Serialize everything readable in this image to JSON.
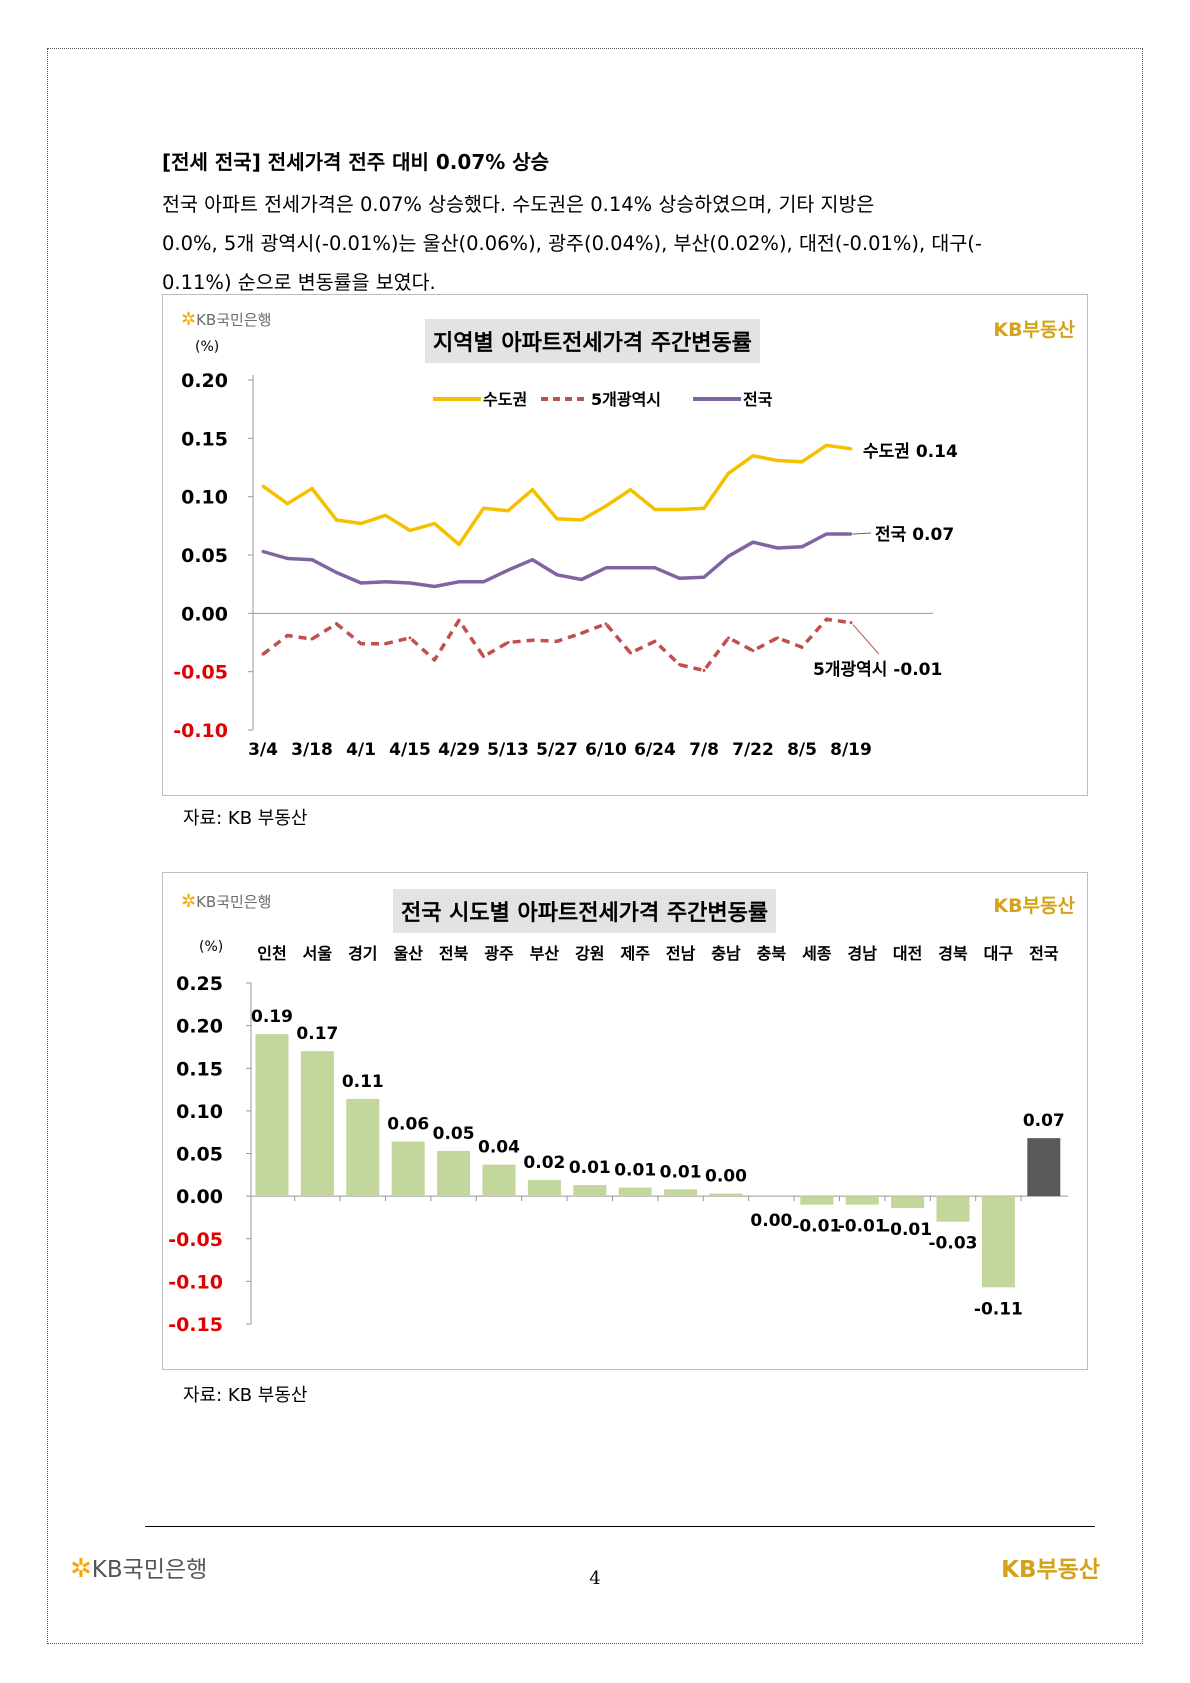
{
  "heading": "[전세 전국] 전세가격 전주 대비 0.07% 상승",
  "paragraph_lines": [
    "전국 아파트 전세가격은 0.07% 상승했다. 수도권은 0.14% 상승하였으며, 기타 지방은",
    "0.0%, 5개 광역시(-0.01%)는 울산(0.06%), 광주(0.04%), 부산(0.02%), 대전(-0.01%), 대구(-",
    "0.11%) 순으로 변동률을 보였다."
  ],
  "logos": {
    "bank": "KB국민은행",
    "kb": "KB부동산"
  },
  "chart1": {
    "title": "지역별 아파트전세가격 주간변동률",
    "unit": "(%)",
    "source": "자료: KB 부동산"
  },
  "chart2": {
    "title": "전국 시도별 아파트전세가격 주간변동률",
    "unit": "(%)",
    "source": "자료: KB 부동산"
  },
  "footer": {
    "bank": "KB국민은행",
    "kb": "KB부동산",
    "page": "4"
  },
  "colors": {
    "capital": "#f5c000",
    "metro": "#c0504d",
    "national": "#8064a2",
    "bar": "#c3d69b",
    "bar_national": "#595959",
    "negative_tick": "#e00000"
  },
  "chart_data": [
    {
      "type": "line",
      "title": "지역별 아파트전세가격 주간변동률",
      "ylabel": "(%)",
      "ylim": [
        -0.1,
        0.2
      ],
      "yticks": [
        "0.20",
        "0.15",
        "0.10",
        "0.05",
        "0.00",
        "-0.05",
        "-0.10"
      ],
      "x_tick_labels": [
        "3/4",
        "3/18",
        "4/1",
        "4/15",
        "4/29",
        "5/13",
        "5/27",
        "6/10",
        "6/24",
        "7/8",
        "7/22",
        "8/5",
        "8/19"
      ],
      "legend": [
        "수도권",
        "5개광역시",
        "전국"
      ],
      "legend_position": "top-center",
      "series": [
        {
          "name": "수도권",
          "style": "solid",
          "color": "#f5c000",
          "values": [
            0.109,
            0.094,
            0.107,
            0.08,
            0.077,
            0.084,
            0.071,
            0.077,
            0.059,
            0.09,
            0.088,
            0.106,
            0.081,
            0.08,
            0.092,
            0.106,
            0.089,
            0.089,
            0.09,
            0.12,
            0.135,
            0.131,
            0.13,
            0.144,
            0.141
          ],
          "end_label": "수도권 0.14"
        },
        {
          "name": "5개광역시",
          "style": "dashed",
          "color": "#c0504d",
          "values": [
            -0.035,
            -0.019,
            -0.022,
            -0.009,
            -0.026,
            -0.026,
            -0.021,
            -0.04,
            -0.006,
            -0.037,
            -0.025,
            -0.023,
            -0.024,
            -0.017,
            -0.009,
            -0.034,
            -0.024,
            -0.044,
            -0.049,
            -0.021,
            -0.032,
            -0.021,
            -0.029,
            -0.005,
            -0.008
          ],
          "end_label": "5개광역시 -0.01"
        },
        {
          "name": "전국",
          "style": "solid",
          "color": "#8064a2",
          "values": [
            0.053,
            0.047,
            0.046,
            0.035,
            0.026,
            0.027,
            0.026,
            0.023,
            0.027,
            0.027,
            0.037,
            0.046,
            0.033,
            0.029,
            0.039,
            0.039,
            0.039,
            0.03,
            0.031,
            0.049,
            0.061,
            0.056,
            0.057,
            0.068,
            0.068
          ],
          "end_label": "전국 0.07"
        }
      ]
    },
    {
      "type": "bar",
      "title": "전국 시도별 아파트전세가격 주간변동률",
      "ylabel": "(%)",
      "ylim": [
        -0.15,
        0.25
      ],
      "yticks": [
        "0.25",
        "0.20",
        "0.15",
        "0.10",
        "0.05",
        "0.00",
        "-0.05",
        "-0.10",
        "-0.15"
      ],
      "categories": [
        "인천",
        "서울",
        "경기",
        "울산",
        "전북",
        "광주",
        "부산",
        "강원",
        "제주",
        "전남",
        "충남",
        "충북",
        "세종",
        "경남",
        "대전",
        "경북",
        "대구",
        "전국"
      ],
      "values": [
        0.19,
        0.17,
        0.114,
        0.064,
        0.053,
        0.037,
        0.019,
        0.013,
        0.01,
        0.008,
        0.003,
        0.0,
        -0.01,
        -0.01,
        -0.014,
        -0.03,
        -0.107,
        0.068
      ],
      "value_labels": [
        "0.19",
        "0.17",
        "0.11",
        "0.06",
        "0.05",
        "0.04",
        "0.02",
        "0.01",
        "0.01",
        "0.01",
        "0.00",
        "0.00",
        "-0.01",
        "-0.01",
        "-0.01",
        "-0.03",
        "-0.11",
        "0.07"
      ]
    }
  ]
}
